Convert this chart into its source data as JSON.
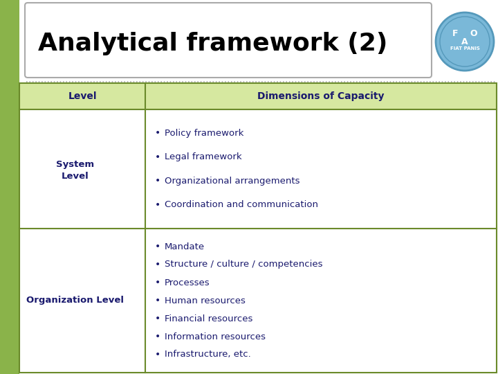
{
  "title": "Analytical framework (2)",
  "title_color": "#000000",
  "background_color": "#ffffff",
  "left_bar_color": "#8ab34a",
  "header_bg_color": "#d6e8a0",
  "header_text_color": "#1a1a6e",
  "cell_text_color": "#1a1a6e",
  "border_color": "#6a8a2a",
  "col1_header": "Level",
  "col2_header": "Dimensions of Capacity",
  "row1_label": "System\nLevel",
  "row2_label": "Organization Level",
  "row1_items": [
    "Policy framework",
    "Legal framework",
    "Organizational arrangements",
    "Coordination and communication"
  ],
  "row2_items": [
    "Mandate",
    "Structure / culture / competencies",
    "Processes",
    "Human resources",
    "Financial resources",
    "Information resources",
    "Infrastructure, etc."
  ],
  "fig_width": 7.2,
  "fig_height": 5.4,
  "dpi": 100,
  "title_font_size": 26,
  "header_font_size": 10,
  "cell_font_size": 9.5,
  "fao_circle_color": "#7ab8d8"
}
